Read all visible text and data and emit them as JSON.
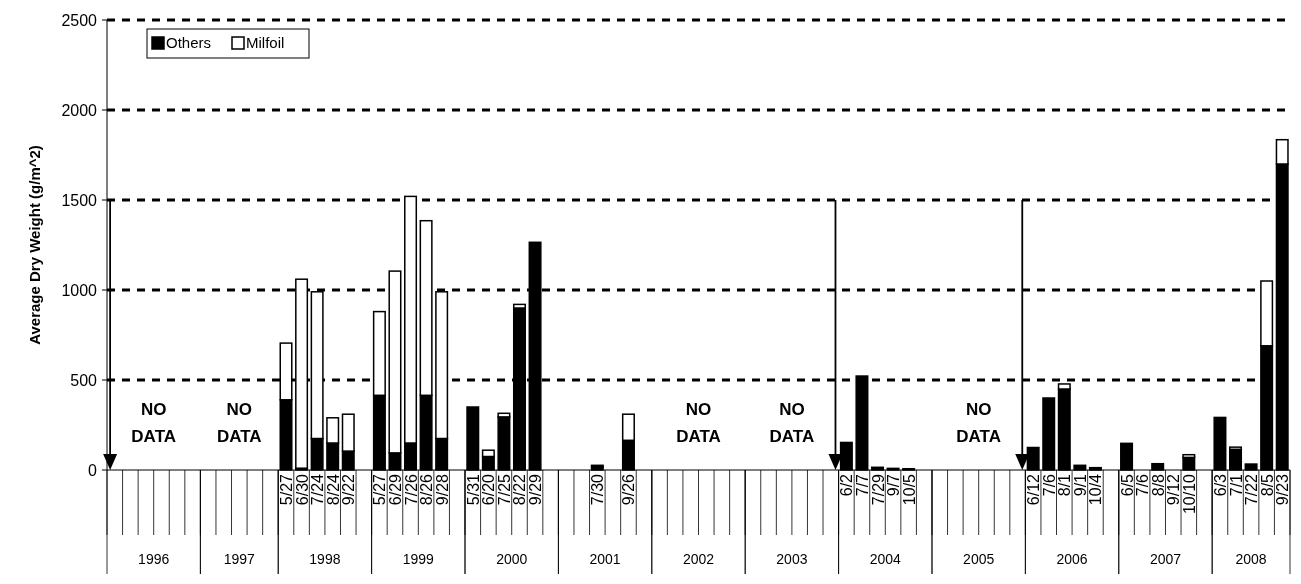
{
  "chart_data": {
    "type": "bar",
    "stacked": true,
    "ylabel": "Average Dry Weight (g/m^2)",
    "categories": [
      null,
      null,
      null,
      null,
      null,
      null,
      null,
      null,
      null,
      null,
      null,
      "5/27",
      "6/30",
      "7/24",
      "8/24",
      "9/22",
      null,
      "5/27",
      "6/29",
      "7/26",
      "8/26",
      "9/28",
      null,
      "5/31",
      "6/20",
      "7/25",
      "8/22",
      "9/29",
      null,
      null,
      null,
      "7/30",
      null,
      "9/26",
      null,
      null,
      null,
      null,
      null,
      null,
      null,
      null,
      null,
      null,
      null,
      null,
      null,
      "6/2",
      "7/7",
      "7/29",
      "9/7",
      "10/5",
      null,
      null,
      null,
      null,
      null,
      null,
      null,
      "6/12",
      "7/6",
      "8/1",
      "9/1",
      "10/4",
      null,
      "6/5",
      "7/6",
      "8/8",
      "9/12",
      "10/10",
      null,
      "6/3",
      "7/1",
      "7/22",
      "8/5",
      "9/23"
    ],
    "series": [
      {
        "name": "Others",
        "color": "#000000",
        "values": [
          null,
          null,
          null,
          null,
          null,
          null,
          null,
          null,
          null,
          null,
          null,
          390,
          10,
          175,
          150,
          105,
          null,
          415,
          95,
          150,
          415,
          175,
          null,
          350,
          75,
          295,
          900,
          1265,
          null,
          null,
          null,
          18,
          null,
          165,
          null,
          null,
          null,
          null,
          null,
          null,
          null,
          null,
          null,
          null,
          null,
          null,
          null,
          153,
          522,
          15,
          9,
          7,
          null,
          null,
          null,
          null,
          null,
          null,
          null,
          125,
          400,
          450,
          26,
          13,
          null,
          148,
          0,
          35,
          0,
          70,
          null,
          292,
          115,
          33,
          690,
          1700
        ]
      },
      {
        "name": "Milfoil",
        "color": "#ffffff",
        "values": [
          null,
          null,
          null,
          null,
          null,
          null,
          null,
          null,
          null,
          null,
          null,
          315,
          1050,
          815,
          140,
          205,
          null,
          465,
          1010,
          1370,
          970,
          815,
          null,
          0,
          35,
          20,
          20,
          0,
          null,
          null,
          null,
          8,
          null,
          145,
          null,
          null,
          null,
          null,
          null,
          null,
          null,
          null,
          null,
          null,
          null,
          null,
          null,
          0,
          0,
          0,
          0,
          0,
          null,
          null,
          null,
          null,
          null,
          null,
          null,
          0,
          0,
          28,
          0,
          0,
          null,
          0,
          0,
          0,
          0,
          15,
          null,
          0,
          12,
          0,
          360,
          135
        ]
      }
    ],
    "ylim": [
      0,
      2500
    ],
    "yticks": [
      0,
      500,
      1000,
      1500,
      2000,
      2500
    ],
    "grid": "y",
    "legend": "top left",
    "annotations": [
      "1996",
      "1997",
      "1998",
      "1999",
      "2000",
      "2001",
      "2002",
      "2003",
      "2004",
      "2005",
      "2006",
      "2007",
      "2008",
      "NO DATA",
      "NO DATA",
      "NO DATA",
      "NO DATA",
      "NO DATA"
    ]
  }
}
